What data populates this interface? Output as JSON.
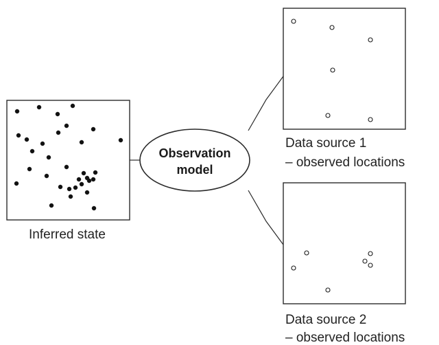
{
  "colors": {
    "ink": "#1a1a1a",
    "background": "#ffffff",
    "dot_fill": "#111111",
    "open_dot_fill": "#ffffff"
  },
  "inferred_state": {
    "label": "Inferred state"
  },
  "observation_model": {
    "line1": "Observation",
    "line2": "model"
  },
  "source1": {
    "line1": "Data source 1",
    "line2": "– observed locations"
  },
  "source2": {
    "line1": "Data source 2",
    "line2": "– observed locations"
  }
}
